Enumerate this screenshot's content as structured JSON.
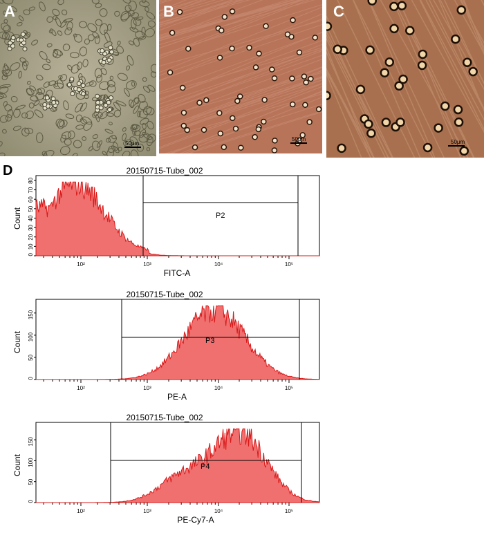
{
  "panels": {
    "a": {
      "label": "A",
      "scale": "50μm"
    },
    "b": {
      "label": "B",
      "scale": "50μm"
    },
    "c": {
      "label": "C",
      "scale": "50μm"
    },
    "d": {
      "label": "D"
    }
  },
  "histograms": [
    {
      "title": "20150715-Tube_002",
      "xlabel": "FITC-A",
      "ylabel": "Count",
      "gate": "P2",
      "yticks": [
        "0",
        "10",
        "20",
        "30",
        "40",
        "50",
        "60",
        "70",
        "80"
      ],
      "xticks": [
        "10²",
        "10³",
        "10⁴",
        "10⁵"
      ]
    },
    {
      "title": "20150715-Tube_002",
      "xlabel": "PE-A",
      "ylabel": "Count",
      "gate": "P3",
      "yticks": [
        "0",
        "50",
        "100",
        "150"
      ],
      "xticks": [
        "10²",
        "10³",
        "10⁴",
        "10⁵"
      ]
    },
    {
      "title": "20150715-Tube_002",
      "xlabel": "PE-Cy7-A",
      "ylabel": "Count",
      "gate": "P4",
      "yticks": [
        "0",
        "50",
        "100",
        "150"
      ],
      "xticks": [
        "10²",
        "10³",
        "10⁴",
        "10⁵"
      ]
    }
  ],
  "colors": {
    "fill": "#f07070",
    "stroke": "#d81818"
  }
}
